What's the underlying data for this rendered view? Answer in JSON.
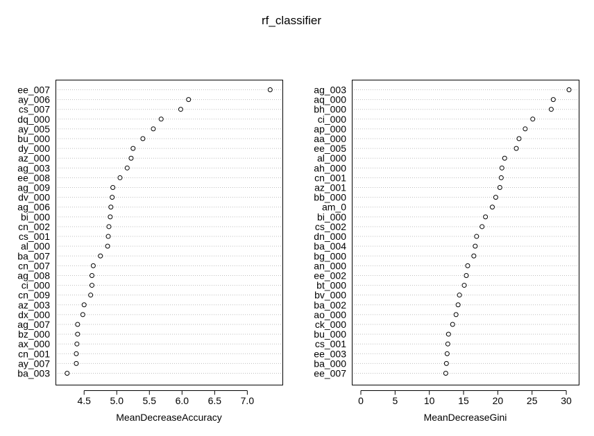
{
  "title": "rf_classifier",
  "chart_data": [
    {
      "type": "dotchart",
      "xlabel": "MeanDecreaseAccuracy",
      "xlim": [
        4.2,
        7.4
      ],
      "xticks": [
        "4.5",
        "5.0",
        "5.5",
        "6.0",
        "6.5",
        "7.0"
      ],
      "grid": "dotted horizontal lines",
      "categories": [
        "ee_007",
        "ay_006",
        "cs_007",
        "dq_000",
        "ay_005",
        "bu_000",
        "dy_000",
        "az_000",
        "ag_003",
        "ee_008",
        "ag_009",
        "dv_000",
        "ag_006",
        "bi_000",
        "cn_002",
        "cs_001",
        "al_000",
        "ba_007",
        "cn_007",
        "ag_008",
        "ci_000",
        "cn_009",
        "az_003",
        "dx_000",
        "ag_007",
        "bz_000",
        "ax_000",
        "cn_001",
        "ay_007",
        "ba_003"
      ],
      "values": [
        7.35,
        6.1,
        5.98,
        5.68,
        5.56,
        5.4,
        5.25,
        5.22,
        5.16,
        5.05,
        4.94,
        4.93,
        4.91,
        4.9,
        4.88,
        4.87,
        4.86,
        4.75,
        4.64,
        4.62,
        4.62,
        4.6,
        4.5,
        4.48,
        4.4,
        4.4,
        4.39,
        4.38,
        4.38,
        4.24
      ]
    },
    {
      "type": "dotchart",
      "xlabel": "MeanDecreaseGini",
      "xlim": [
        0,
        30.5
      ],
      "xticks": [
        "0",
        "5",
        "10",
        "15",
        "20",
        "25",
        "30"
      ],
      "grid": "dotted horizontal lines",
      "categories": [
        "ag_003",
        "aq_000",
        "bh_000",
        "ci_000",
        "ap_000",
        "aa_000",
        "ee_005",
        "al_000",
        "ah_000",
        "cn_001",
        "az_001",
        "bb_000",
        "am_0",
        "bi_000",
        "cs_002",
        "dn_000",
        "ba_004",
        "bg_000",
        "an_000",
        "ee_002",
        "bt_000",
        "bv_000",
        "ba_002",
        "ao_000",
        "ck_000",
        "bu_000",
        "cs_001",
        "ee_003",
        "ba_000",
        "ee_007"
      ],
      "values": [
        30.4,
        28.1,
        27.8,
        25.1,
        24.0,
        23.1,
        22.7,
        21.0,
        20.6,
        20.5,
        20.3,
        19.7,
        19.2,
        18.2,
        17.7,
        16.9,
        16.7,
        16.5,
        15.6,
        15.4,
        15.1,
        14.4,
        14.2,
        13.9,
        13.4,
        12.8,
        12.7,
        12.6,
        12.5,
        12.4
      ]
    }
  ]
}
